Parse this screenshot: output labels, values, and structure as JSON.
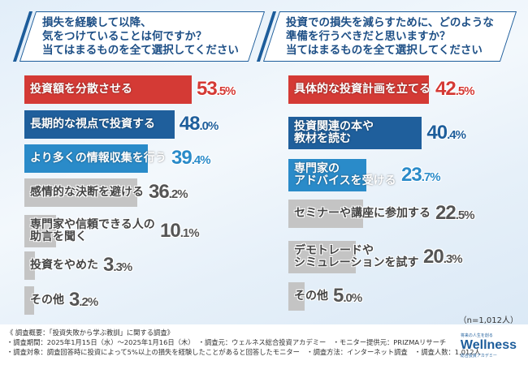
{
  "chart_data": [
    {
      "type": "bar",
      "orientation": "horizontal",
      "title": "損失を経験して以降、\n気をつけていることは何ですか？\n当てはまるものを全て選択してください",
      "unit": "%",
      "categories": [
        "投資額を分散させる",
        "長期的な視点で投資する",
        "より多くの情報収集を行う",
        "感情的な決断を避ける",
        "専門家や信頼できる人の\n助言を聞く",
        "投資をやめた",
        "その他"
      ],
      "values": [
        53.5,
        48.0,
        39.4,
        36.2,
        10.1,
        3.3,
        3.2
      ],
      "colors": [
        "#d43a35",
        "#1f5f9c",
        "#2a8bc9",
        "#c4c4c4",
        "#c4c4c4",
        "#c4c4c4",
        "#c4c4c4"
      ]
    },
    {
      "type": "bar",
      "orientation": "horizontal",
      "title": "投資での損失を減らすために、どのような\n準備を行うべきだと思いますか？\n当てはまるものを全て選択してください",
      "unit": "%",
      "categories": [
        "具体的な投資計画を立てる",
        "投資関連の本や\n教材を読む",
        "専門家の\nアドバイスを受ける",
        "セミナーや講座に参加する",
        "デモトレードや\nシミュレーションを試す",
        "その他"
      ],
      "values": [
        42.5,
        40.4,
        23.7,
        22.5,
        20.3,
        5.0
      ],
      "colors": [
        "#d43a35",
        "#1f5f9c",
        "#2a8bc9",
        "#c4c4c4",
        "#c4c4c4",
        "#c4c4c4"
      ]
    }
  ],
  "sample": "（n=1,012人）",
  "footer": [
    "《 調査概要：「投資失敗から学ぶ教訓」に関する調査》",
    "・調査期間：2025年1月15日（水）～2025年1月16日（木）　・調査元：ウェルネス総合投資アカデミー　・モニター提供元：PRIZMAリサーチ",
    "・調査対象：調査回答時に投資によって5%以上の損失を経験したことがあると回答したモニター　・調査方法：インターネット調査　・調査人数：1,012人"
  ],
  "logo": {
    "top": "将来の人生を創る",
    "name": "Wellness",
    "sub": "総合投資アカデミー"
  }
}
